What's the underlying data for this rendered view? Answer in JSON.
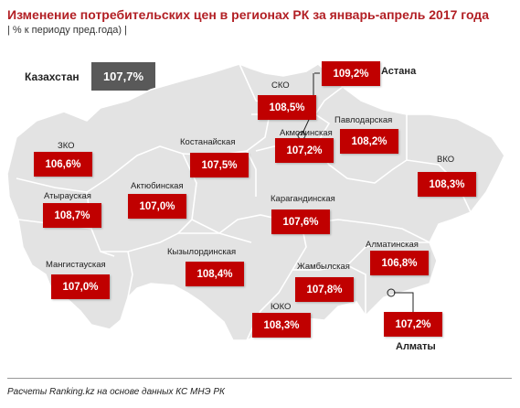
{
  "header": {
    "title": "Изменение потребительских цен в регионах РК за январь-апрель 2017 года",
    "subtitle": "| % к периоду пред.года) |"
  },
  "country": {
    "label": "Казахстан",
    "value": "107,7%"
  },
  "regions": {
    "sko": {
      "label": "СКО",
      "value": "108,5%"
    },
    "astana": {
      "label": "Астана",
      "value": "109,2%"
    },
    "pavlodar": {
      "label": "Павлодарская",
      "value": "108,2%"
    },
    "kostanay": {
      "label": "Костанайская",
      "value": "107,5%"
    },
    "akmola": {
      "label": "Акмолинская",
      "value": "107,2%"
    },
    "zko": {
      "label": "ЗКО",
      "value": "106,6%"
    },
    "atyrau": {
      "label": "Атырауская",
      "value": "108,7%"
    },
    "aktobe": {
      "label": "Актюбинская",
      "value": "107,0%"
    },
    "vko": {
      "label": "ВКО",
      "value": "108,3%"
    },
    "karaganda": {
      "label": "Карагандинская",
      "value": "107,6%"
    },
    "kyzylorda": {
      "label": "Кызылординская",
      "value": "108,4%"
    },
    "mangistau": {
      "label": "Мангистауская",
      "value": "107,0%"
    },
    "almaty_reg": {
      "label": "Алматинская",
      "value": "106,8%"
    },
    "zhambyl": {
      "label": "Жамбылская",
      "value": "107,8%"
    },
    "uko": {
      "label": "ЮКО",
      "value": "108,3%"
    },
    "almaty": {
      "label": "Алматы",
      "value": "107,2%"
    }
  },
  "footer": {
    "source": "Расчеты Ranking.kz на основе данных КС МНЭ РК"
  },
  "colors": {
    "badge": "#c00000",
    "country_box": "#595959",
    "map_fill": "#e3e3e3",
    "title": "#b21f24"
  }
}
